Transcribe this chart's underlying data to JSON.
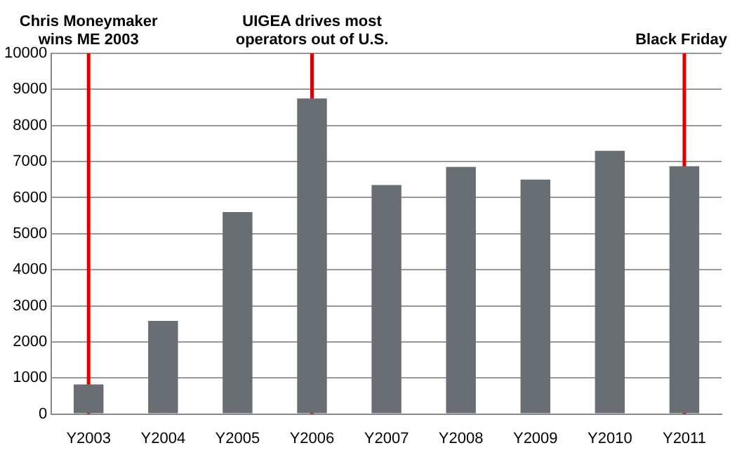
{
  "chart_data": {
    "type": "bar",
    "categories": [
      "Y2003",
      "Y2004",
      "Y2005",
      "Y2006",
      "Y2007",
      "Y2008",
      "Y2009",
      "Y2010",
      "Y2011"
    ],
    "values": [
      820,
      2580,
      5600,
      8750,
      6350,
      6850,
      6500,
      7300,
      6870
    ],
    "color": "#686e73",
    "ylim": [
      0,
      10000
    ],
    "yticks": [
      0,
      1000,
      2000,
      3000,
      4000,
      5000,
      6000,
      7000,
      8000,
      9000,
      10000
    ],
    "grid": "y",
    "legend": false,
    "ref_lines": [
      {
        "axis": "x",
        "value": "Y2003",
        "label": "Chris Moneymaker wins ME 2003",
        "color": "#e00000"
      },
      {
        "axis": "x",
        "value": "Y2006",
        "label": "UIGEA drives most operators out of U.S.",
        "color": "#e00000"
      },
      {
        "axis": "x",
        "value": "Y2011",
        "label": "Black Friday",
        "color": "#e00000"
      }
    ]
  }
}
